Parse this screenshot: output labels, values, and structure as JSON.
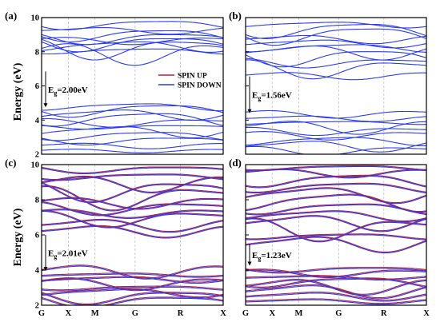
{
  "figure": {
    "ylabel": "Energy (eV)",
    "legend": {
      "entries": [
        {
          "label": "SPIN UP",
          "color": "#b22040"
        },
        {
          "label": "SPIN DOWN",
          "color": "#2b3bf0"
        }
      ]
    }
  },
  "chart_data": [
    {
      "type": "line",
      "panel": "(a)",
      "gap_label": "E",
      "gap_sub": "g",
      "gap_value": "=2.00eV",
      "gap_arrow_from": 6.85,
      "gap_arrow_to": 4.75,
      "x_ticks": [
        "G",
        "X",
        "M",
        "G",
        "R",
        "X"
      ],
      "x_tick_positions": [
        0,
        1,
        2,
        3.5,
        5.2,
        6.8
      ],
      "ylim": [
        2,
        10
      ],
      "y_ticks": [
        "2",
        "4",
        "6",
        "8",
        "10"
      ],
      "spin_up_visible": false,
      "conduction_levels": [
        7.9,
        8.05,
        8.2,
        8.35,
        8.5,
        8.65,
        8.8,
        9.0,
        9.25,
        9.6
      ],
      "valence_levels": [
        2.2,
        2.5,
        2.8,
        3.1,
        3.35,
        3.6,
        3.85,
        4.1,
        4.35,
        4.6,
        4.8
      ],
      "legend_placement": "center-right"
    },
    {
      "type": "line",
      "panel": "(b)",
      "gap_label": "E",
      "gap_sub": "g",
      "gap_value": "=1.56eV",
      "gap_arrow_from": 6.55,
      "gap_arrow_to": 4.4,
      "x_ticks": [
        "G",
        "X",
        "M",
        "G",
        "R",
        "X"
      ],
      "x_tick_positions": [
        0,
        1,
        2,
        3.5,
        5.2,
        6.8
      ],
      "ylim": [
        2,
        10
      ],
      "y_ticks": [
        "2",
        "4",
        "6",
        "8",
        "10"
      ],
      "spin_up_visible": false,
      "conduction_levels": [
        6.6,
        7.0,
        7.35,
        7.7,
        8.0,
        8.25,
        8.5,
        8.75,
        9.0,
        9.3,
        9.6
      ],
      "valence_levels": [
        2.2,
        2.5,
        2.8,
        3.1,
        3.35,
        3.6,
        3.85,
        4.1,
        4.35
      ]
    },
    {
      "type": "line",
      "panel": "(c)",
      "gap_label": "E",
      "gap_sub": "g",
      "gap_value": "=2.01eV",
      "gap_arrow_from": 6.0,
      "gap_arrow_to": 3.95,
      "x_ticks": [
        "G",
        "X",
        "M",
        "G",
        "R",
        "X"
      ],
      "x_tick_positions": [
        0,
        1,
        2,
        3.5,
        5.2,
        6.8
      ],
      "ylim": [
        2,
        10
      ],
      "y_ticks": [
        "2",
        "4",
        "6",
        "8",
        "10"
      ],
      "spin_up_visible": true,
      "conduction_levels": [
        6.2,
        6.55,
        6.9,
        7.2,
        7.5,
        7.8,
        8.1,
        8.5,
        8.9,
        9.3,
        9.7
      ],
      "valence_levels": [
        2.2,
        2.45,
        2.7,
        2.95,
        3.2,
        3.45,
        3.7,
        3.9
      ]
    },
    {
      "type": "line",
      "panel": "(d)",
      "gap_label": "E",
      "gap_sub": "g",
      "gap_value": "=1.23eV",
      "gap_arrow_from": 5.5,
      "gap_arrow_to": 4.25,
      "x_ticks": [
        "G",
        "X",
        "M",
        "G",
        "R",
        "X"
      ],
      "x_tick_positions": [
        0,
        1,
        2,
        3.5,
        5.2,
        6.8
      ],
      "ylim": [
        2,
        10
      ],
      "y_ticks": [
        "2",
        "4",
        "6",
        "8",
        "10"
      ],
      "spin_up_visible": true,
      "conduction_levels": [
        5.5,
        5.9,
        6.3,
        6.7,
        7.1,
        7.5,
        7.9,
        8.3,
        8.7,
        9.1,
        9.5,
        9.8
      ],
      "valence_levels": [
        2.2,
        2.5,
        2.8,
        3.05,
        3.3,
        3.55,
        3.8,
        4.0
      ]
    }
  ]
}
